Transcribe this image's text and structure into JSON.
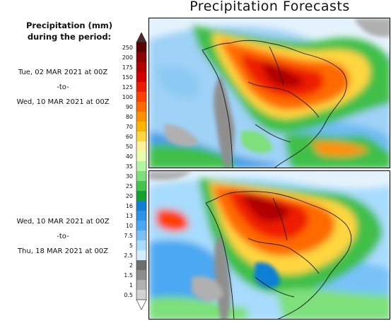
{
  "header": {
    "title": "Precipitation Forecasts"
  },
  "legend": {
    "title_line1": "Precipitation (mm)",
    "title_line2": "during the period:",
    "ticks": [
      "250",
      "200",
      "175",
      "150",
      "125",
      "100",
      "90",
      "80",
      "70",
      "60",
      "50",
      "40",
      "35",
      "30",
      "25",
      "20",
      "16",
      "13",
      "10",
      "7.5",
      "5",
      "2.5",
      "2",
      "1.5",
      "1",
      "0.5"
    ],
    "colors": [
      "#5a0000",
      "#8b0000",
      "#b00000",
      "#d40000",
      "#ee1c00",
      "#ff4000",
      "#ff6a00",
      "#ff9000",
      "#ffb400",
      "#ffd640",
      "#fff199",
      "#e8ffb0",
      "#b4f5a0",
      "#7de07a",
      "#44c44a",
      "#16a030",
      "#0f7fd4",
      "#2c93e8",
      "#4ba8f2",
      "#78c2f8",
      "#a7dcfc",
      "#d2eefe",
      "#6e6e6e",
      "#8e8e8e",
      "#b0b0b0",
      "#d2d2d2"
    ]
  },
  "periods": [
    {
      "start": "Tue, 02 MAR 2021 at 00Z",
      "sep": "-to-",
      "end": "Wed, 10 MAR 2021 at 00Z"
    },
    {
      "start": "Wed, 10 MAR 2021 at 00Z",
      "sep": "-to-",
      "end": "Thu, 18 MAR 2021 at 00Z"
    }
  ]
}
